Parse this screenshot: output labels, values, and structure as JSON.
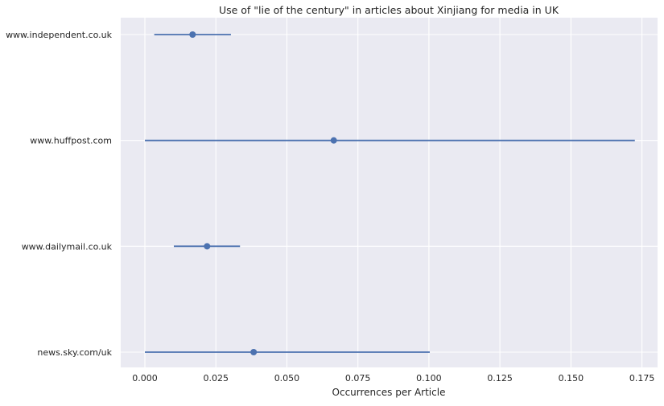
{
  "chart_data": {
    "type": "scatter",
    "title": "Use of \"lie of the century\" in articles about Xinjiang for media in UK",
    "xlabel": "Occurrences per Article",
    "ylabel": "",
    "xlim": [
      -0.0085,
      0.1805
    ],
    "xticks": [
      0.0,
      0.025,
      0.05,
      0.075,
      0.1,
      0.125,
      0.15,
      0.175
    ],
    "xtick_labels": [
      "0.000",
      "0.025",
      "0.050",
      "0.075",
      "0.100",
      "0.125",
      "0.150",
      "0.175"
    ],
    "categories": [
      "www.independent.co.uk",
      "www.huffpost.com",
      "www.dailymail.co.uk",
      "news.sky.com/uk"
    ],
    "points": [
      {
        "label": "www.independent.co.uk",
        "value": 0.0168,
        "ci": [
          0.0033,
          0.0303
        ]
      },
      {
        "label": "www.huffpost.com",
        "value": 0.0665,
        "ci": [
          0.0,
          0.1725
        ]
      },
      {
        "label": "www.dailymail.co.uk",
        "value": 0.0219,
        "ci": [
          0.0102,
          0.0335
        ]
      },
      {
        "label": "news.sky.com/uk",
        "value": 0.0383,
        "ci": [
          0.0,
          0.1003
        ]
      }
    ],
    "grid": true,
    "colors": {
      "background": "#eaeaf2",
      "grid": "#ffffff",
      "series": "#4c72b0"
    }
  }
}
